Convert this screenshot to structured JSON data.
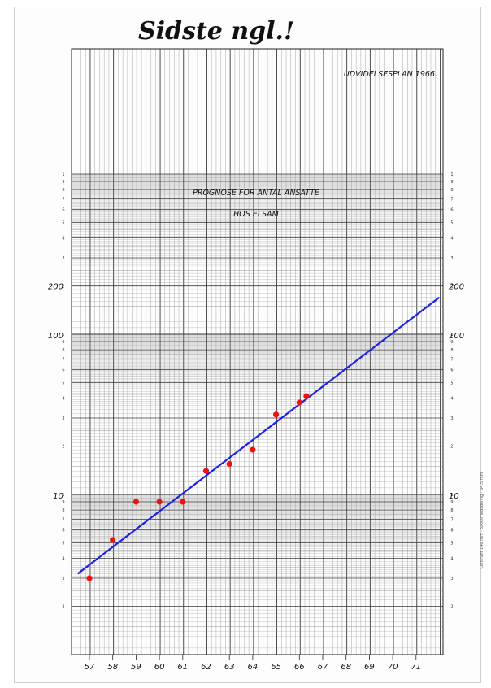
{
  "handwritten_note": "Sidste ngl.!",
  "header_label": "UDVIDELSESPLAN 1966.",
  "margin_text": "Centrum 146 mm · Sikkerhedsdeling · 64.5 mm",
  "colors": {
    "trend": "#1f1fe6",
    "points": "#ee1111",
    "grid_major": "#3a3a3a",
    "grid_minor": "#8a8a8a"
  },
  "chart_data": {
    "type": "scatter",
    "title": [
      "PROGNOSE FOR ANTAL ANSATTE",
      "HOS ELSAM"
    ],
    "xlabel": "",
    "ylabel": "",
    "x_ticks": [
      "57",
      "58",
      "59",
      "60",
      "61",
      "62",
      "63",
      "64",
      "65",
      "66",
      "67",
      "68",
      "69",
      "70",
      "71"
    ],
    "y_tick_labels_left": [
      "200",
      "100",
      "10"
    ],
    "y_tick_labels_right": [
      "200",
      "100",
      "10"
    ],
    "y_scale": "log",
    "xlim": [
      56.3,
      72
    ],
    "ylim": [
      1,
      1000
    ],
    "grid": true,
    "series": [
      {
        "points": [
          {
            "x": 57.0,
            "y": 3.0
          },
          {
            "x": 58.0,
            "y": 5.2
          },
          {
            "x": 59.0,
            "y": 9.0
          },
          {
            "x": 60.0,
            "y": 9.0
          },
          {
            "x": 61.0,
            "y": 9.0
          },
          {
            "x": 62.0,
            "y": 14.0
          },
          {
            "x": 63.0,
            "y": 15.5
          },
          {
            "x": 64.0,
            "y": 19.0
          },
          {
            "x": 65.0,
            "y": 31.5
          },
          {
            "x": 66.0,
            "y": 37.5
          },
          {
            "x": 66.3,
            "y": 41.0
          }
        ]
      },
      {
        "type": "line",
        "points": [
          {
            "x": 56.5,
            "y": 3.2
          },
          {
            "x": 72,
            "y": 170
          }
        ]
      }
    ]
  }
}
